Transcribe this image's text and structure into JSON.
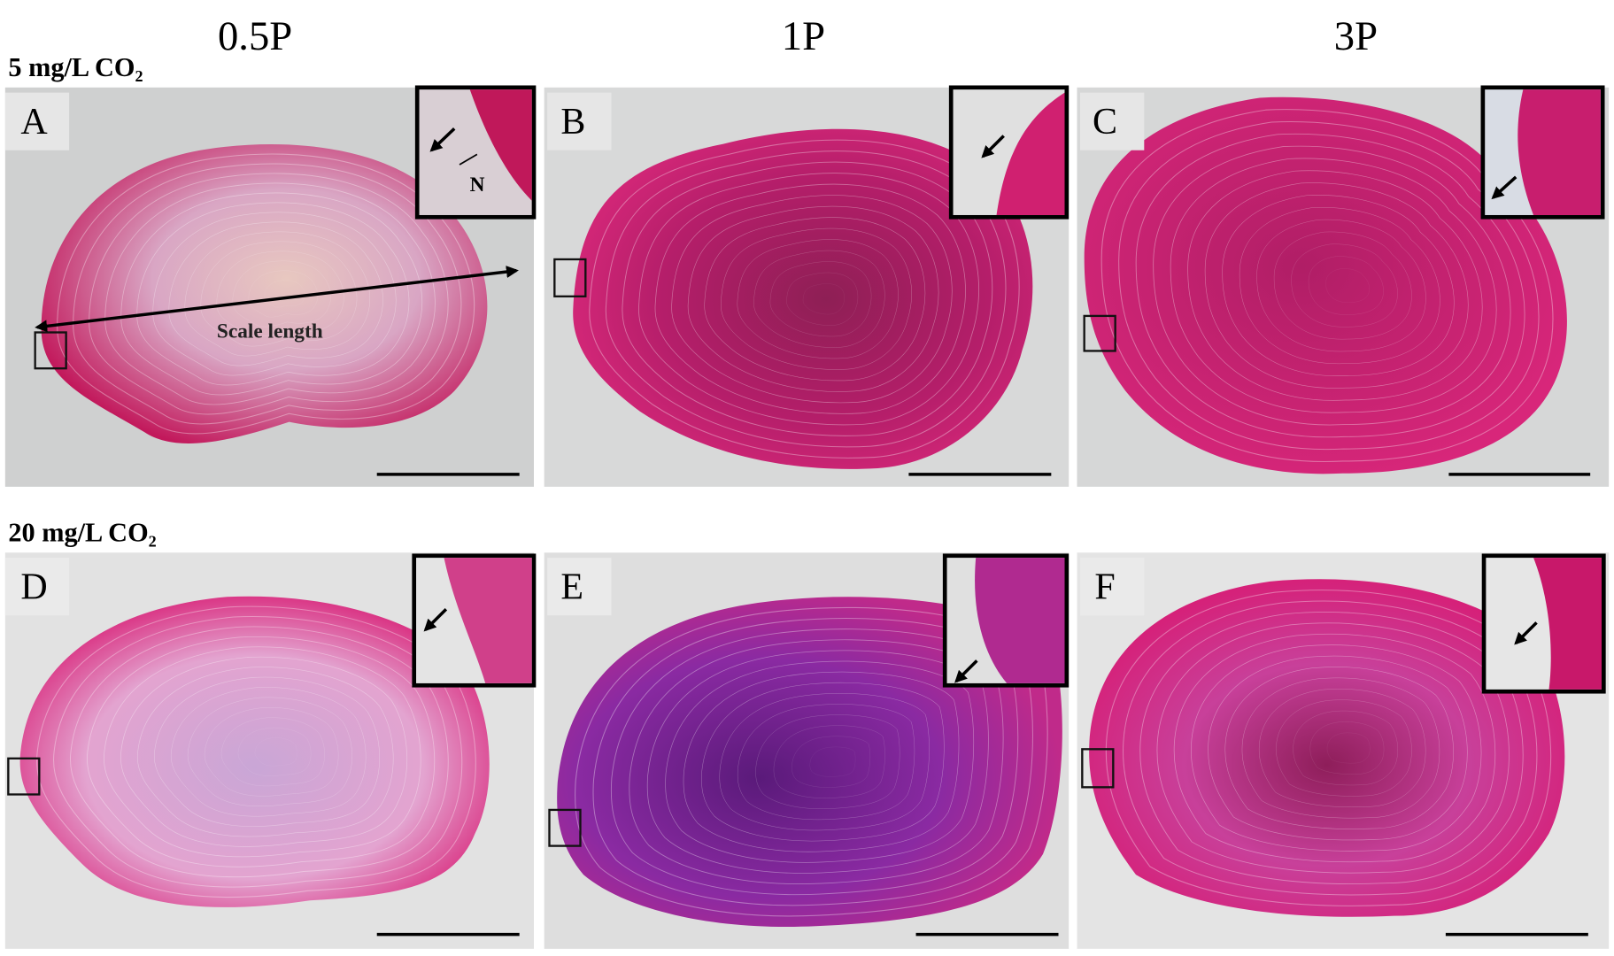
{
  "columns": [
    "0.5P",
    "1P",
    "3P"
  ],
  "rows": [
    "5 mg/L CO₂",
    "20 mg/L CO₂"
  ],
  "panels": [
    {
      "label": "A"
    },
    {
      "label": "B"
    },
    {
      "label": "C"
    },
    {
      "label": "D"
    },
    {
      "label": "E"
    },
    {
      "label": "F"
    }
  ],
  "annotations": {
    "scale_length": "Scale length",
    "n": "N"
  }
}
